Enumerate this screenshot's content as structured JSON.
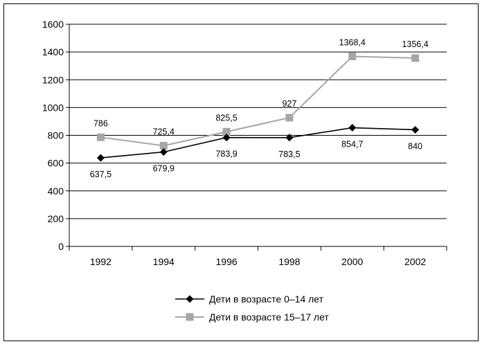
{
  "chart_data": {
    "type": "line",
    "categories": [
      "1992",
      "1994",
      "1996",
      "1998",
      "2000",
      "2002"
    ],
    "ylim": [
      0,
      1600
    ],
    "yticks": [
      "0",
      "200",
      "400",
      "600",
      "800",
      "1000",
      "1200",
      "1400",
      "1600"
    ],
    "grid": true,
    "legend_position": "bottom",
    "series": [
      {
        "name": "Дети в возрасте 0–14 лет",
        "values": [
          637.5,
          679.9,
          783.9,
          783.5,
          854.7,
          840
        ],
        "labels": [
          "637,5",
          "679,9",
          "783,9",
          "783,5",
          "854,7",
          "840"
        ],
        "color": "#000000",
        "marker": "diamond"
      },
      {
        "name": "Дети в возрасте 15–17 лет",
        "values": [
          786,
          725.4,
          825.5,
          927,
          1368.4,
          1356.4
        ],
        "labels": [
          "786",
          "725,4",
          "825,5",
          "927",
          "1368,4",
          "1356,4"
        ],
        "color": "#a6a6a6",
        "marker": "square"
      }
    ]
  }
}
